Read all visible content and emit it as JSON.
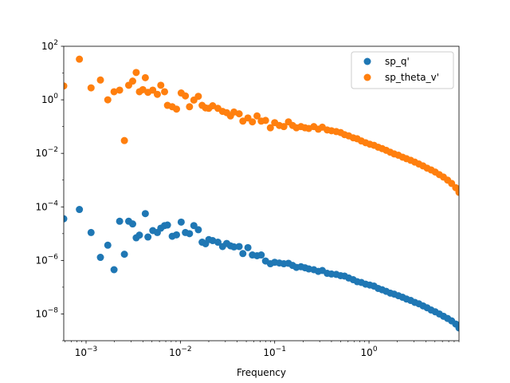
{
  "chart_data": {
    "type": "scatter",
    "title": "",
    "xlabel": "Frequency",
    "ylabel": "",
    "xscale": "log",
    "yscale": "log",
    "xlim": [
      0.00058,
      9.0
    ],
    "ylim": [
      1e-09,
      100
    ],
    "grid": false,
    "legend_position": "top-right",
    "x_ticks": [
      {
        "value": 0.001,
        "base": "10",
        "exp": "−3"
      },
      {
        "value": 0.01,
        "base": "10",
        "exp": "−2"
      },
      {
        "value": 0.1,
        "base": "10",
        "exp": "−1"
      },
      {
        "value": 1,
        "base": "10",
        "exp": "0"
      }
    ],
    "y_ticks": [
      {
        "value": 1e-08,
        "base": "10",
        "exp": "−8"
      },
      {
        "value": 1e-06,
        "base": "10",
        "exp": "−6"
      },
      {
        "value": 0.0001,
        "base": "10",
        "exp": "−4"
      },
      {
        "value": 0.01,
        "base": "10",
        "exp": "−2"
      },
      {
        "value": 1,
        "base": "10",
        "exp": "0"
      },
      {
        "value": 100,
        "base": "10",
        "exp": "2"
      }
    ],
    "series": [
      {
        "name": "sp_q'",
        "color": "#1f77b4",
        "points": [
          [
            0.00058,
            3.6e-05
          ],
          [
            0.00085,
            8e-05
          ],
          [
            0.00113,
            1.1e-05
          ],
          [
            0.00142,
            1.3e-06
          ],
          [
            0.0017,
            3.7e-06
          ],
          [
            0.00198,
            4.5e-07
          ],
          [
            0.00227,
            2.9e-05
          ],
          [
            0.00255,
            1.7e-06
          ],
          [
            0.00283,
            2.9e-05
          ],
          [
            0.00312,
            2.3e-05
          ],
          [
            0.0034,
            7e-06
          ],
          [
            0.00368,
            8.8e-06
          ],
          [
            0.00425,
            5.6e-05
          ],
          [
            0.00453,
            7.5e-06
          ],
          [
            0.0051,
            1.3e-05
          ],
          [
            0.0057,
            1.1e-05
          ],
          [
            0.0062,
            1.6e-05
          ],
          [
            0.0068,
            2e-05
          ],
          [
            0.0073,
            2.1e-05
          ],
          [
            0.0082,
            8e-06
          ],
          [
            0.0091,
            9e-06
          ],
          [
            0.0102,
            2.7e-05
          ],
          [
            0.0113,
            1.1e-05
          ],
          [
            0.0125,
            1e-05
          ],
          [
            0.0139,
            2e-05
          ],
          [
            0.0155,
            1.4e-05
          ],
          [
            0.017,
            4.8e-06
          ],
          [
            0.0185,
            4.2e-06
          ],
          [
            0.02,
            6e-06
          ],
          [
            0.022,
            5.5e-06
          ],
          [
            0.025,
            4.8e-06
          ],
          [
            0.028,
            3.3e-06
          ],
          [
            0.031,
            4.3e-06
          ],
          [
            0.034,
            3.5e-06
          ],
          [
            0.037,
            3.2e-06
          ],
          [
            0.042,
            3.3e-06
          ],
          [
            0.046,
            1.8e-06
          ],
          [
            0.052,
            3e-06
          ],
          [
            0.058,
            1.6e-06
          ],
          [
            0.065,
            1.5e-06
          ],
          [
            0.072,
            1.6e-06
          ],
          [
            0.08,
            9.5e-07
          ],
          [
            0.09,
            7.5e-07
          ],
          [
            0.1,
            8.5e-07
          ],
          [
            0.112,
            8e-07
          ],
          [
            0.125,
            7.5e-07
          ],
          [
            0.14,
            7.8e-07
          ],
          [
            0.155,
            6.5e-07
          ],
          [
            0.17,
            5.5e-07
          ],
          [
            0.19,
            5.8e-07
          ],
          [
            0.21,
            5.3e-07
          ],
          [
            0.23,
            4.8e-07
          ],
          [
            0.26,
            4.5e-07
          ],
          [
            0.29,
            3.9e-07
          ],
          [
            0.32,
            4.2e-07
          ],
          [
            0.36,
            3.3e-07
          ],
          [
            0.4,
            3.1e-07
          ],
          [
            0.45,
            3e-07
          ],
          [
            0.5,
            2.7e-07
          ],
          [
            0.55,
            2.6e-07
          ],
          [
            0.61,
            2.2e-07
          ],
          [
            0.68,
            1.9e-07
          ],
          [
            0.75,
            1.6e-07
          ],
          [
            0.83,
            1.5e-07
          ],
          [
            0.92,
            1.3e-07
          ],
          [
            1.02,
            1.2e-07
          ],
          [
            1.13,
            1.1e-07
          ],
          [
            1.25,
            9e-08
          ],
          [
            1.38,
            8e-08
          ],
          [
            1.52,
            7e-08
          ],
          [
            1.68,
            6e-08
          ],
          [
            1.85,
            5.5e-08
          ],
          [
            2.05,
            4.8e-08
          ],
          [
            2.27,
            4.2e-08
          ],
          [
            2.5,
            3.6e-08
          ],
          [
            2.77,
            3.2e-08
          ],
          [
            3.06,
            2.7e-08
          ],
          [
            3.38,
            2.4e-08
          ],
          [
            3.74,
            2e-08
          ],
          [
            4.13,
            1.7e-08
          ],
          [
            4.56,
            1.4e-08
          ],
          [
            5.04,
            1.2e-08
          ],
          [
            5.57,
            1e-08
          ],
          [
            6.16,
            8.2e-09
          ],
          [
            6.81,
            6.8e-09
          ],
          [
            7.52,
            5.5e-09
          ],
          [
            8.31,
            4.2e-09
          ],
          [
            9.0,
            3e-09
          ]
        ]
      },
      {
        "name": "sp_theta_v'",
        "color": "#ff7f0e",
        "points": [
          [
            0.00058,
            3.3
          ],
          [
            0.00085,
            33
          ],
          [
            0.00113,
            2.8
          ],
          [
            0.00142,
            5.5
          ],
          [
            0.0017,
            1.0
          ],
          [
            0.00198,
            2.0
          ],
          [
            0.00227,
            2.3
          ],
          [
            0.00255,
            0.03
          ],
          [
            0.00283,
            3.5
          ],
          [
            0.00312,
            5.0
          ],
          [
            0.0034,
            10.5
          ],
          [
            0.00368,
            2.0
          ],
          [
            0.004,
            2.4
          ],
          [
            0.00425,
            6.7
          ],
          [
            0.00453,
            1.9
          ],
          [
            0.0051,
            2.3
          ],
          [
            0.0057,
            1.6
          ],
          [
            0.0062,
            3.5
          ],
          [
            0.0068,
            2.0
          ],
          [
            0.0073,
            0.62
          ],
          [
            0.0082,
            0.55
          ],
          [
            0.0091,
            0.45
          ],
          [
            0.0102,
            1.8
          ],
          [
            0.0113,
            1.4
          ],
          [
            0.0125,
            0.55
          ],
          [
            0.0139,
            0.98
          ],
          [
            0.0155,
            1.35
          ],
          [
            0.017,
            0.62
          ],
          [
            0.0185,
            0.5
          ],
          [
            0.02,
            0.48
          ],
          [
            0.022,
            0.6
          ],
          [
            0.025,
            0.48
          ],
          [
            0.028,
            0.37
          ],
          [
            0.031,
            0.33
          ],
          [
            0.034,
            0.25
          ],
          [
            0.037,
            0.35
          ],
          [
            0.042,
            0.3
          ],
          [
            0.046,
            0.16
          ],
          [
            0.052,
            0.21
          ],
          [
            0.058,
            0.15
          ],
          [
            0.065,
            0.25
          ],
          [
            0.072,
            0.16
          ],
          [
            0.08,
            0.17
          ],
          [
            0.09,
            0.09
          ],
          [
            0.1,
            0.14
          ],
          [
            0.112,
            0.11
          ],
          [
            0.125,
            0.1
          ],
          [
            0.14,
            0.15
          ],
          [
            0.155,
            0.11
          ],
          [
            0.17,
            0.09
          ],
          [
            0.19,
            0.1
          ],
          [
            0.21,
            0.09
          ],
          [
            0.23,
            0.085
          ],
          [
            0.26,
            0.1
          ],
          [
            0.29,
            0.08
          ],
          [
            0.32,
            0.095
          ],
          [
            0.36,
            0.075
          ],
          [
            0.4,
            0.07
          ],
          [
            0.45,
            0.065
          ],
          [
            0.5,
            0.06
          ],
          [
            0.55,
            0.05
          ],
          [
            0.61,
            0.045
          ],
          [
            0.68,
            0.038
          ],
          [
            0.75,
            0.035
          ],
          [
            0.83,
            0.029
          ],
          [
            0.92,
            0.025
          ],
          [
            1.02,
            0.022
          ],
          [
            1.13,
            0.02
          ],
          [
            1.25,
            0.017
          ],
          [
            1.38,
            0.015
          ],
          [
            1.52,
            0.013
          ],
          [
            1.68,
            0.011
          ],
          [
            1.85,
            0.0095
          ],
          [
            2.05,
            0.0085
          ],
          [
            2.27,
            0.0072
          ],
          [
            2.5,
            0.0063
          ],
          [
            2.77,
            0.0055
          ],
          [
            3.06,
            0.0047
          ],
          [
            3.38,
            0.004
          ],
          [
            3.74,
            0.0034
          ],
          [
            4.13,
            0.0028
          ],
          [
            4.56,
            0.0024
          ],
          [
            5.04,
            0.002
          ],
          [
            5.57,
            0.0016
          ],
          [
            6.16,
            0.0013
          ],
          [
            6.81,
            0.001
          ],
          [
            7.52,
            0.00075
          ],
          [
            8.31,
            0.00052
          ],
          [
            9.0,
            0.00035
          ]
        ]
      }
    ]
  }
}
